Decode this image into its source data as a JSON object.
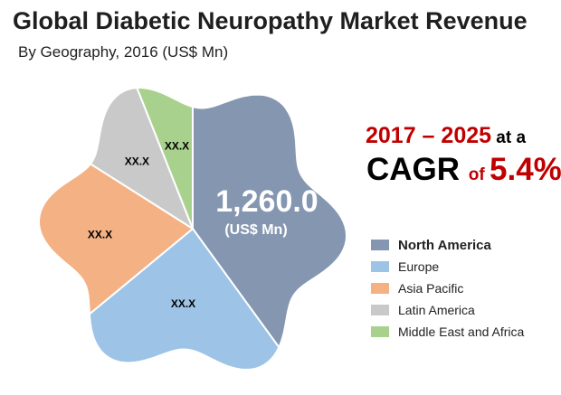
{
  "title": "Global Diabetic Neuropathy Market Revenue",
  "subtitle": "By Geography, 2016 (US$ Mn)",
  "cagr": {
    "years": "2017 – 2025",
    "at_a": " at a",
    "word": "CAGR ",
    "of": "of ",
    "value": "5.4%"
  },
  "center_value": "1,260.0",
  "center_unit": "(US$ Mn)",
  "chart_data": {
    "type": "pie",
    "title": "Global Diabetic Neuropathy Market Revenue",
    "subtitle": "By Geography, 2016 (US$ Mn)",
    "legend_position": "right",
    "slices": [
      {
        "name": "North America",
        "value": 1260.0,
        "label": "1,260.0",
        "share": 0.4,
        "color": "#8496b0",
        "label_color": "#ffffff",
        "legend_bold": true
      },
      {
        "name": "Europe",
        "label": "XX.X",
        "share": 0.24,
        "color": "#9dc3e6",
        "label_color": "#000000",
        "legend_bold": false
      },
      {
        "name": "Asia Pacific",
        "label": "XX.X",
        "share": 0.2,
        "color": "#f4b183",
        "label_color": "#000000",
        "legend_bold": false
      },
      {
        "name": "Latin America",
        "label": "XX.X",
        "share": 0.1,
        "color": "#c9c9c9",
        "label_color": "#000000",
        "legend_bold": false
      },
      {
        "name": "Middle East and Africa",
        "label": "XX.X",
        "share": 0.06,
        "color": "#a9d18e",
        "label_color": "#000000",
        "legend_bold": false
      }
    ]
  }
}
